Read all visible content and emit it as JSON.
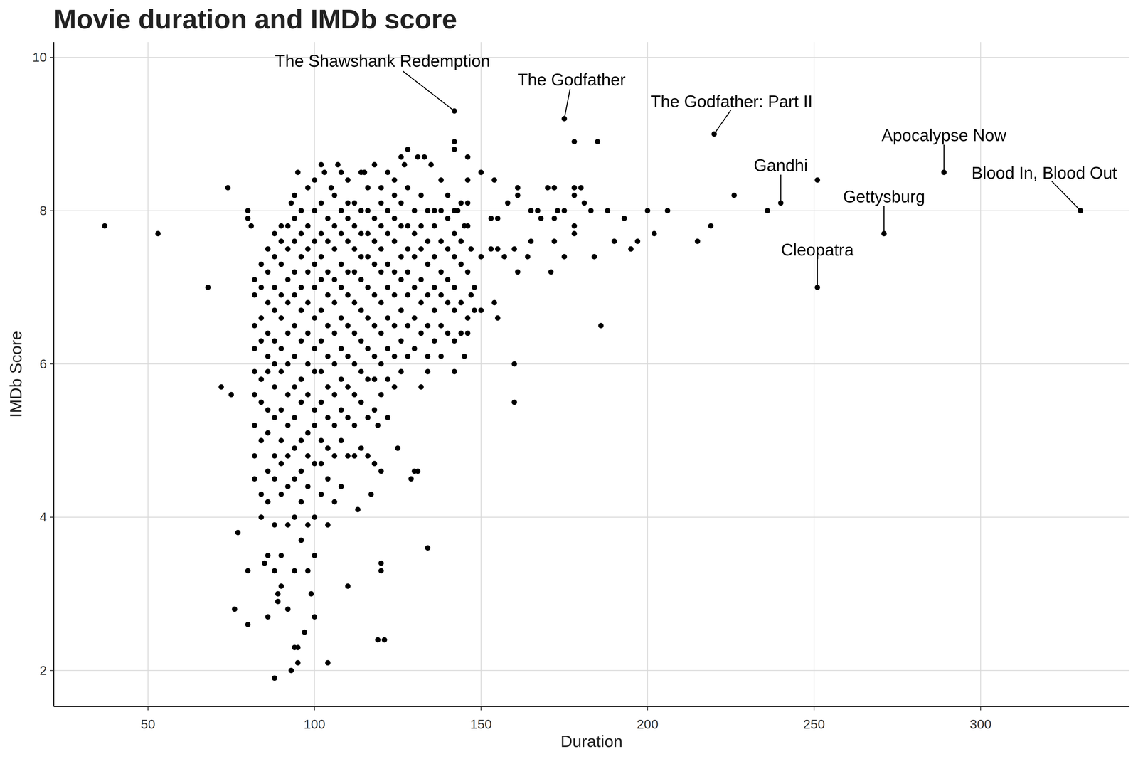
{
  "chart_data": {
    "type": "scatter",
    "title": "Movie duration and IMDb score",
    "x_label": "Duration",
    "y_label": "IMDb Score",
    "xlim": [
      21.7,
      344.7
    ],
    "ylim": [
      1.53,
      10.2
    ],
    "xticks": [
      50,
      100,
      150,
      200,
      250,
      300
    ],
    "yticks": [
      2,
      4,
      6,
      8,
      10
    ],
    "grid": true,
    "color": "#000000",
    "marker": "circle",
    "annotations": [
      {
        "text": "The Shawshank Redemption",
        "x": 142,
        "y": 9.3
      },
      {
        "text": "The Godfather",
        "x": 175,
        "y": 9.2
      },
      {
        "text": "The Godfather: Part II",
        "x": 220,
        "y": 9.0
      },
      {
        "text": "Apocalypse Now",
        "x": 289,
        "y": 8.5
      },
      {
        "text": "Gandhi",
        "x": 240,
        "y": 8.1
      },
      {
        "text": "Blood In, Blood Out",
        "x": 330,
        "y": 8.0
      },
      {
        "text": "Gettysburg",
        "x": 271,
        "y": 7.7
      },
      {
        "text": "Cleopatra",
        "x": 251,
        "y": 7.0
      }
    ],
    "x": [
      37,
      53,
      68,
      72,
      74,
      75,
      77,
      76,
      80,
      80,
      80,
      80,
      81,
      85,
      86,
      88,
      89,
      89,
      90,
      92,
      93,
      94,
      95,
      95,
      97,
      99,
      100,
      104,
      110,
      120,
      120,
      119,
      121,
      134,
      130,
      131,
      129,
      113,
      117,
      120,
      125,
      119,
      132,
      134,
      142,
      145,
      160,
      160,
      186,
      155,
      154,
      171,
      175,
      184,
      164,
      161,
      160,
      165,
      172,
      178,
      178,
      190,
      195,
      197,
      202,
      215,
      219,
      236,
      226,
      251,
      240,
      251,
      271,
      289,
      330,
      220,
      175,
      142,
      178,
      185,
      142,
      142,
      146,
      146,
      150,
      154,
      158,
      161,
      161,
      165,
      168,
      170,
      172,
      173,
      175,
      178,
      180,
      178,
      181,
      183,
      188,
      193,
      200,
      206,
      167,
      172,
      155,
      153,
      153,
      155,
      157,
      150,
      148,
      147,
      148,
      150,
      147,
      145,
      143,
      140,
      138,
      135,
      133,
      131,
      128,
      127,
      126,
      124,
      122,
      120,
      118,
      115,
      114,
      110,
      108,
      107,
      105,
      103,
      102,
      100,
      95,
      94,
      93,
      96,
      98,
      82,
      82,
      82,
      82,
      82,
      82,
      82,
      82,
      82,
      84,
      84,
      84,
      84,
      84,
      84,
      84,
      84,
      84,
      86,
      86,
      86,
      86,
      86,
      86,
      86,
      86,
      86,
      86,
      86,
      88,
      88,
      88,
      88,
      88,
      88,
      88,
      88,
      88,
      88,
      88,
      88,
      90,
      90,
      90,
      90,
      90,
      90,
      90,
      90,
      90,
      90,
      90,
      90,
      92,
      92,
      92,
      92,
      92,
      92,
      92,
      92,
      92,
      92,
      92,
      94,
      94,
      94,
      94,
      94,
      94,
      94,
      94,
      94,
      94,
      94,
      94,
      96,
      96,
      96,
      96,
      96,
      96,
      96,
      96,
      96,
      96,
      96,
      98,
      98,
      98,
      98,
      98,
      98,
      98,
      98,
      98,
      98,
      98,
      98,
      100,
      100,
      100,
      100,
      100,
      100,
      100,
      100,
      100,
      100,
      100,
      100,
      102,
      102,
      102,
      102,
      102,
      102,
      102,
      102,
      102,
      102,
      102,
      104,
      104,
      104,
      104,
      104,
      104,
      104,
      104,
      104,
      104,
      104,
      106,
      106,
      106,
      106,
      106,
      106,
      106,
      106,
      106,
      106,
      106,
      108,
      108,
      108,
      108,
      108,
      108,
      108,
      108,
      108,
      108,
      110,
      110,
      110,
      110,
      110,
      110,
      110,
      110,
      110,
      110,
      112,
      112,
      112,
      112,
      112,
      112,
      112,
      112,
      112,
      112,
      114,
      114,
      114,
      114,
      114,
      114,
      114,
      114,
      114,
      116,
      116,
      116,
      116,
      116,
      116,
      116,
      116,
      116,
      116,
      118,
      118,
      118,
      118,
      118,
      118,
      118,
      118,
      118,
      120,
      120,
      120,
      120,
      120,
      120,
      120,
      120,
      122,
      122,
      122,
      122,
      122,
      122,
      122,
      122,
      124,
      124,
      124,
      124,
      124,
      124,
      124,
      124,
      126,
      126,
      126,
      126,
      126,
      126,
      126,
      128,
      128,
      128,
      128,
      128,
      128,
      128,
      130,
      130,
      130,
      130,
      130,
      130,
      132,
      132,
      132,
      132,
      132,
      132,
      134,
      134,
      134,
      134,
      134,
      134,
      136,
      136,
      136,
      136,
      136,
      136,
      138,
      138,
      138,
      138,
      138,
      138,
      140,
      140,
      140,
      140,
      140,
      142,
      142,
      142,
      142,
      142,
      142,
      144,
      144,
      144,
      144,
      144,
      146,
      146,
      146,
      146,
      146
    ],
    "values": [
      7.8,
      7.7,
      7.0,
      5.7,
      8.3,
      5.6,
      3.8,
      2.8,
      2.6,
      3.3,
      8.0,
      7.9,
      7.8,
      3.4,
      2.7,
      1.9,
      2.9,
      3.0,
      3.1,
      2.8,
      2.0,
      2.3,
      2.1,
      2.3,
      2.5,
      3.0,
      2.7,
      2.1,
      3.1,
      3.4,
      3.3,
      2.4,
      2.4,
      3.6,
      4.6,
      4.6,
      4.5,
      4.1,
      4.3,
      4.6,
      4.9,
      5.2,
      5.7,
      5.9,
      5.9,
      6.1,
      6.0,
      5.5,
      6.5,
      6.6,
      6.8,
      7.2,
      7.4,
      7.4,
      7.4,
      7.2,
      7.5,
      7.6,
      7.6,
      7.7,
      7.8,
      7.6,
      7.5,
      7.6,
      7.7,
      7.6,
      7.8,
      8.0,
      8.2,
      8.4,
      8.1,
      7.0,
      7.7,
      8.5,
      8.0,
      9.0,
      9.2,
      9.3,
      8.9,
      8.9,
      8.9,
      8.8,
      8.7,
      8.4,
      8.5,
      8.4,
      8.1,
      8.2,
      8.3,
      8.0,
      7.9,
      8.3,
      8.3,
      8.0,
      8.0,
      8.3,
      8.3,
      8.2,
      8.1,
      8.0,
      8.0,
      7.9,
      8.0,
      8.0,
      8.0,
      7.9,
      7.5,
      7.5,
      7.9,
      7.9,
      7.4,
      7.4,
      6.7,
      6.9,
      7.0,
      6.7,
      7.5,
      7.8,
      8.0,
      8.2,
      8.4,
      8.6,
      8.7,
      8.7,
      8.8,
      8.6,
      8.7,
      8.4,
      8.5,
      8.3,
      8.6,
      8.5,
      8.5,
      8.4,
      8.5,
      8.6,
      8.3,
      8.5,
      8.6,
      8.4,
      8.5,
      8.2,
      8.1,
      8.0,
      8.3,
      4.5,
      4.8,
      5.2,
      5.6,
      5.9,
      6.2,
      6.5,
      6.9,
      7.1,
      4.0,
      4.3,
      5.0,
      5.5,
      5.8,
      6.3,
      6.6,
      7.0,
      7.3,
      3.5,
      4.2,
      4.6,
      5.1,
      5.4,
      5.9,
      6.1,
      6.4,
      6.8,
      7.2,
      7.5,
      3.3,
      3.9,
      4.5,
      4.8,
      5.3,
      5.7,
      6.0,
      6.3,
      6.7,
      7.0,
      7.4,
      7.7,
      3.5,
      4.3,
      4.7,
      5.0,
      5.4,
      5.9,
      6.2,
      6.6,
      6.9,
      7.3,
      7.6,
      7.8,
      3.9,
      4.4,
      4.8,
      5.2,
      5.6,
      6.0,
      6.4,
      6.8,
      7.1,
      7.5,
      7.8,
      3.3,
      4.0,
      4.5,
      4.9,
      5.3,
      5.7,
      6.1,
      6.5,
      6.9,
      7.2,
      7.6,
      7.9,
      3.7,
      4.2,
      4.6,
      5.0,
      5.5,
      5.8,
      6.3,
      6.7,
      7.0,
      7.4,
      7.7,
      3.3,
      3.9,
      4.4,
      4.8,
      5.1,
      5.6,
      6.0,
      6.4,
      6.8,
      7.2,
      7.5,
      7.8,
      3.5,
      4.0,
      4.7,
      5.2,
      5.4,
      5.9,
      6.2,
      6.6,
      7.0,
      7.3,
      7.6,
      8.0,
      4.3,
      4.7,
      5.0,
      5.5,
      5.9,
      6.3,
      6.7,
      7.1,
      7.4,
      7.7,
      8.1,
      3.9,
      4.5,
      4.9,
      5.3,
      5.7,
      6.1,
      6.5,
      6.9,
      7.2,
      7.6,
      7.9,
      4.2,
      4.8,
      5.2,
      5.6,
      6.0,
      6.4,
      6.8,
      7.1,
      7.5,
      7.8,
      8.2,
      4.4,
      5.0,
      5.4,
      5.8,
      6.2,
      6.6,
      7.0,
      7.3,
      7.7,
      8.0,
      4.8,
      5.3,
      5.7,
      6.1,
      6.5,
      6.9,
      7.2,
      7.6,
      7.9,
      8.1,
      4.8,
      5.2,
      5.6,
      6.0,
      6.4,
      6.8,
      7.2,
      7.5,
      7.8,
      8.1,
      4.9,
      5.5,
      5.9,
      6.3,
      6.7,
      7.1,
      7.4,
      7.7,
      8.0,
      4.8,
      5.3,
      5.8,
      6.2,
      6.6,
      7.0,
      7.4,
      7.7,
      8.0,
      8.3,
      4.7,
      5.4,
      5.8,
      6.1,
      6.5,
      6.9,
      7.3,
      7.6,
      7.9,
      5.6,
      6.0,
      6.4,
      6.8,
      7.2,
      7.5,
      7.8,
      8.1,
      5.3,
      5.8,
      6.2,
      6.6,
      7.0,
      7.3,
      7.7,
      8.0,
      5.7,
      6.1,
      6.5,
      6.9,
      7.2,
      7.6,
      7.9,
      8.2,
      5.9,
      6.3,
      6.7,
      7.1,
      7.4,
      7.8,
      8.1,
      6.1,
      6.5,
      6.9,
      7.2,
      7.5,
      7.8,
      8.3,
      6.2,
      6.6,
      7.0,
      7.4,
      7.7,
      8.0,
      6.4,
      6.8,
      7.1,
      7.5,
      7.8,
      8.2,
      6.1,
      6.5,
      6.9,
      7.3,
      7.6,
      8.0,
      6.3,
      6.7,
      7.0,
      7.4,
      7.8,
      8.0,
      6.1,
      6.5,
      6.9,
      7.2,
      7.6,
      8.0,
      6.4,
      6.8,
      7.1,
      7.5,
      7.9,
      6.3,
      6.7,
      7.0,
      7.4,
      7.7,
      8.0,
      6.4,
      6.8,
      7.3,
      7.6,
      8.1,
      6.4,
      6.6,
      7.2,
      7.8,
      8.1
    ]
  }
}
